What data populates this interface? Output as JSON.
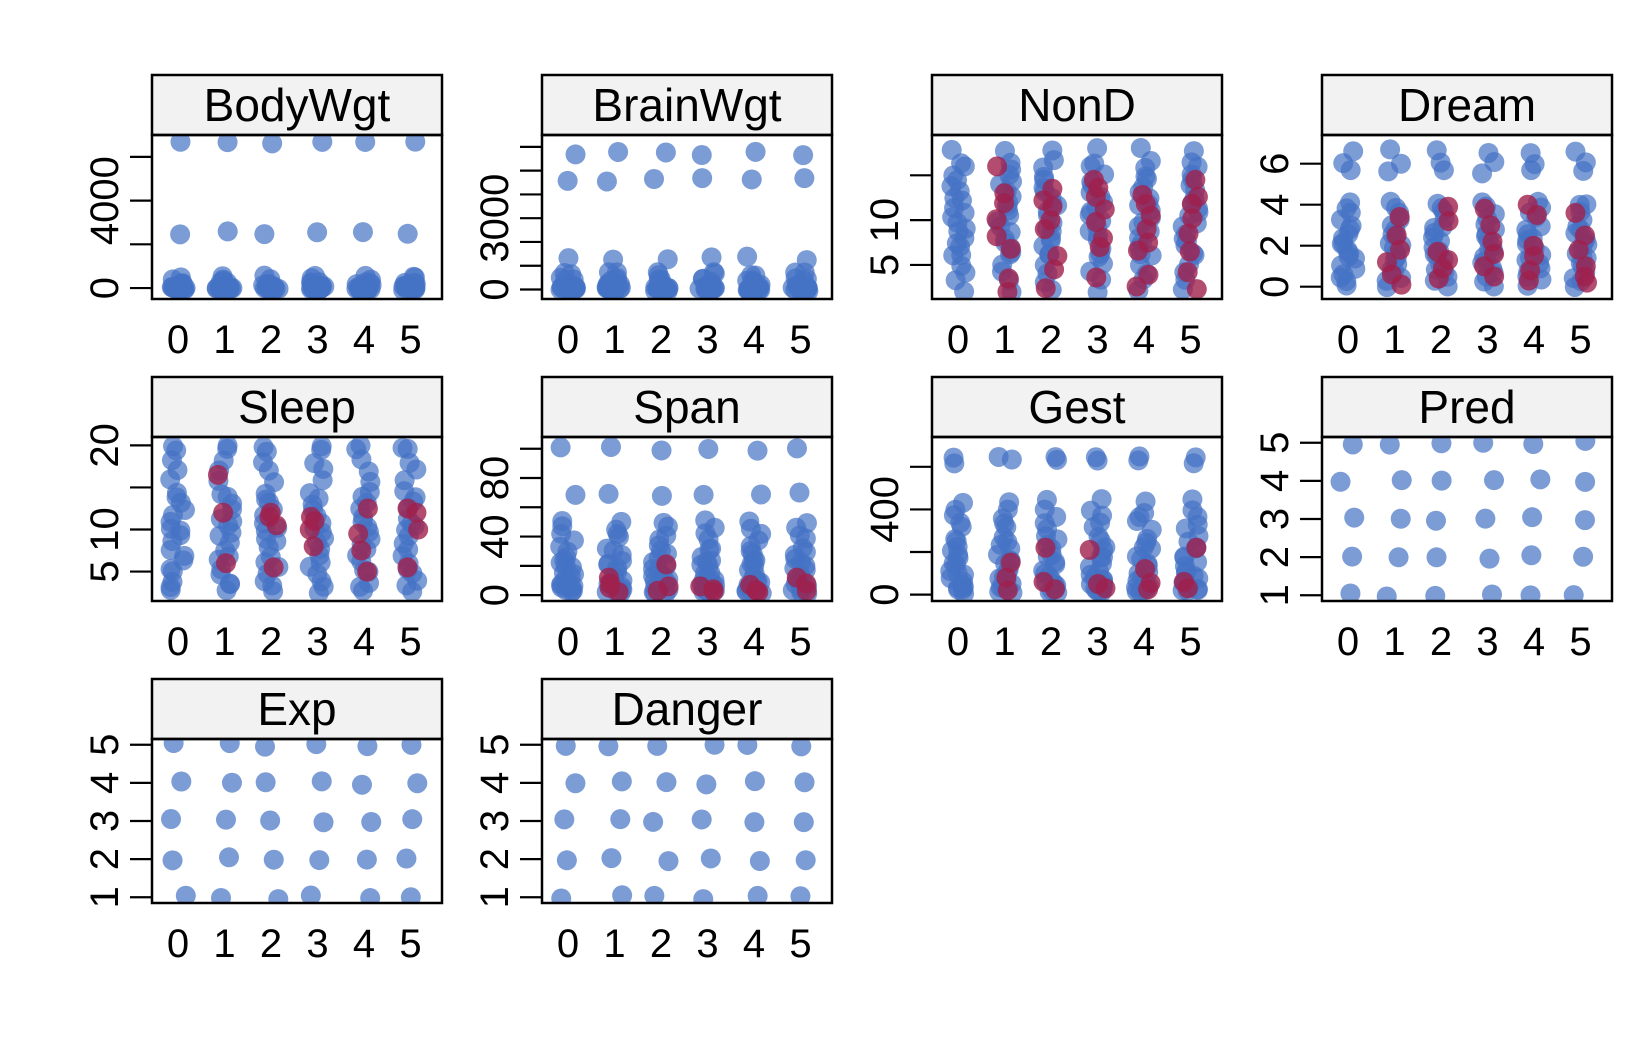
{
  "figure": {
    "point_color_observed": "#4472C4",
    "point_color_imputed": "#A0204C"
  },
  "chart_data": [
    {
      "type": "scatter",
      "title": "BodyWgt",
      "categories": [
        "0",
        "1",
        "2",
        "3",
        "4",
        "5"
      ],
      "ylim": [
        -500,
        7000
      ],
      "y_ticks": [
        0,
        2000,
        4000,
        6000
      ],
      "y_tick_labels": [
        "0",
        "",
        "4000",
        ""
      ],
      "observed": [
        6654,
        2547,
        521,
        465,
        250,
        187,
        160,
        100,
        60,
        52,
        36,
        27,
        10,
        6.8,
        4.2,
        3.3,
        2.5,
        1.4,
        1.0,
        0.9,
        0.5,
        0.3,
        0.12,
        0.05,
        0.02
      ],
      "imputed": []
    },
    {
      "type": "scatter",
      "title": "BrainWgt",
      "categories": [
        "0",
        "1",
        "2",
        "3",
        "4",
        "5"
      ],
      "ylim": [
        -400,
        6500
      ],
      "y_ticks": [
        0,
        1000,
        2000,
        3000,
        4000,
        5000,
        6000
      ],
      "y_tick_labels": [
        "0",
        "",
        "",
        "3000",
        "",
        "",
        ""
      ],
      "observed": [
        5712,
        4603,
        1320,
        680,
        655,
        440,
        419,
        325,
        180,
        169,
        157,
        115,
        98,
        81,
        56,
        50,
        44,
        25,
        17,
        12,
        6.6,
        5,
        3.5,
        1,
        0.14
      ],
      "imputed": []
    },
    {
      "type": "scatter",
      "title": "NonD",
      "categories": [
        "0",
        "1",
        "2",
        "3",
        "4",
        "5"
      ],
      "ylim": [
        1.2,
        19.5
      ],
      "y_ticks": [
        5,
        10,
        15
      ],
      "y_tick_labels": [
        "5",
        "10",
        ""
      ],
      "observed": [
        2.1,
        3.2,
        4.2,
        5.0,
        6.0,
        6.3,
        7.0,
        7.6,
        8.1,
        8.6,
        9.1,
        9.7,
        10.4,
        11.0,
        11.5,
        12.0,
        12.5,
        13.2,
        13.8,
        14.4,
        15.0,
        15.8,
        16.5,
        17.9
      ],
      "imputed": {
        "1": [
          2.0,
          3.5,
          6.8,
          8.2,
          10.1,
          11.9,
          13.0,
          16.0
        ],
        "2": [
          2.4,
          4.5,
          6.0,
          9.0,
          10.0,
          11.5,
          12.2,
          13.5
        ],
        "3": [
          3.6,
          7.0,
          8.0,
          9.8,
          11.2,
          12.6,
          13.6,
          14.5
        ],
        "4": [
          2.6,
          3.9,
          6.6,
          7.5,
          9.0,
          10.5,
          11.8,
          12.8
        ],
        "5": [
          2.3,
          4.2,
          6.5,
          8.5,
          10.2,
          11.8,
          12.6,
          14.5
        ]
      }
    },
    {
      "type": "scatter",
      "title": "Dream",
      "categories": [
        "0",
        "1",
        "2",
        "3",
        "4",
        "5"
      ],
      "ylim": [
        -0.6,
        7.4
      ],
      "y_ticks": [
        0,
        2,
        4,
        6
      ],
      "y_tick_labels": [
        "0",
        "2",
        "4",
        "6"
      ],
      "observed": [
        0.0,
        0.3,
        0.5,
        0.7,
        0.9,
        1.1,
        1.3,
        1.5,
        1.6,
        1.8,
        2.0,
        2.2,
        2.4,
        2.6,
        2.8,
        3.0,
        3.3,
        3.6,
        3.9,
        4.1,
        5.6,
        6.0,
        6.6
      ],
      "imputed": {
        "1": [
          0.1,
          0.6,
          1.2,
          1.8,
          2.5,
          3.4
        ],
        "2": [
          0.4,
          0.9,
          1.3,
          1.7,
          3.2,
          3.9
        ],
        "3": [
          0.5,
          1.0,
          1.6,
          2.2,
          3.0,
          3.8
        ],
        "4": [
          0.3,
          0.8,
          1.5,
          2.0,
          3.5,
          4.0
        ],
        "5": [
          0.2,
          0.5,
          1.0,
          1.8,
          2.5,
          3.6
        ]
      }
    },
    {
      "type": "scatter",
      "title": "Sleep",
      "categories": [
        "0",
        "1",
        "2",
        "3",
        "4",
        "5"
      ],
      "ylim": [
        1.5,
        21.0
      ],
      "y_ticks": [
        5,
        10,
        15,
        20
      ],
      "y_tick_labels": [
        "5",
        "10",
        "",
        "20"
      ],
      "observed": [
        2.6,
        3.3,
        3.8,
        4.8,
        5.4,
        6.2,
        7.0,
        7.7,
        8.4,
        9.1,
        9.8,
        10.3,
        10.9,
        11.5,
        12.5,
        13.2,
        13.8,
        14.4,
        15.8,
        17.0,
        18.1,
        19.4,
        19.9
      ],
      "imputed": {
        "1": [
          6.0,
          12.0,
          16.5
        ],
        "2": [
          5.5,
          10.5,
          11.5,
          12.0
        ],
        "3": [
          8.0,
          10.0,
          11.0,
          11.5
        ],
        "4": [
          5.0,
          7.5,
          9.5,
          12.5
        ],
        "5": [
          5.5,
          10.0,
          12.0,
          12.5
        ]
      }
    },
    {
      "type": "scatter",
      "title": "Span",
      "categories": [
        "0",
        "1",
        "2",
        "3",
        "4",
        "5"
      ],
      "ylim": [
        -4,
        108
      ],
      "y_ticks": [
        0,
        20,
        40,
        60,
        80,
        100
      ],
      "y_tick_labels": [
        "0",
        "",
        "40",
        "",
        "80",
        ""
      ],
      "observed": [
        2.0,
        2.3,
        3.0,
        3.5,
        4.5,
        6.0,
        7.0,
        8.0,
        9.0,
        10.4,
        12.0,
        13.7,
        16.0,
        19.0,
        20.2,
        22.4,
        24.0,
        27.0,
        30.0,
        33.0,
        38.6,
        41.0,
        46.0,
        50.0,
        69.0,
        100.0
      ],
      "imputed": {
        "1": [
          2.0,
          5.0,
          8.0,
          12.0
        ],
        "2": [
          3.0,
          6.0,
          21.0
        ],
        "3": [
          2.5,
          4.0,
          6.0
        ],
        "4": [
          2.0,
          3.5,
          7.0
        ],
        "5": [
          3.0,
          8.0,
          12.0
        ]
      }
    },
    {
      "type": "scatter",
      "title": "Gest",
      "categories": [
        "0",
        "1",
        "2",
        "3",
        "4",
        "5"
      ],
      "ylim": [
        -30,
        740
      ],
      "y_ticks": [
        0,
        200,
        400,
        600
      ],
      "y_tick_labels": [
        "0",
        "",
        "400",
        ""
      ],
      "observed": [
        12,
        16,
        21,
        28,
        33,
        42,
        50,
        60,
        68,
        90,
        100,
        115,
        140,
        150,
        170,
        180,
        210,
        225,
        252,
        267,
        310,
        336,
        365,
        392,
        440,
        625,
        645
      ],
      "imputed": {
        "1": [
          20,
          80,
          150
        ],
        "2": [
          25,
          60,
          220
        ],
        "3": [
          30,
          50,
          210
        ],
        "4": [
          25,
          55,
          120
        ],
        "5": [
          30,
          60,
          220
        ]
      }
    },
    {
      "type": "scatter",
      "title": "Pred",
      "categories": [
        "0",
        "1",
        "2",
        "3",
        "4",
        "5"
      ],
      "ylim": [
        0.85,
        5.15
      ],
      "y_ticks": [
        1,
        2,
        3,
        4,
        5
      ],
      "y_tick_labels": [
        "1",
        "2",
        "3",
        "4",
        "5"
      ],
      "observed": [
        1,
        2,
        3,
        4,
        5
      ],
      "imputed": []
    },
    {
      "type": "scatter",
      "title": "Exp",
      "categories": [
        "0",
        "1",
        "2",
        "3",
        "4",
        "5"
      ],
      "ylim": [
        0.85,
        5.15
      ],
      "y_ticks": [
        1,
        2,
        3,
        4,
        5
      ],
      "y_tick_labels": [
        "1",
        "2",
        "3",
        "4",
        "5"
      ],
      "observed": [
        1,
        2,
        3,
        4,
        5
      ],
      "imputed": []
    },
    {
      "type": "scatter",
      "title": "Danger",
      "categories": [
        "0",
        "1",
        "2",
        "3",
        "4",
        "5"
      ],
      "ylim": [
        0.85,
        5.15
      ],
      "y_ticks": [
        1,
        2,
        3,
        4,
        5
      ],
      "y_tick_labels": [
        "1",
        "2",
        "3",
        "4",
        "5"
      ],
      "observed": [
        1,
        2,
        3,
        4,
        5
      ],
      "imputed": []
    }
  ]
}
